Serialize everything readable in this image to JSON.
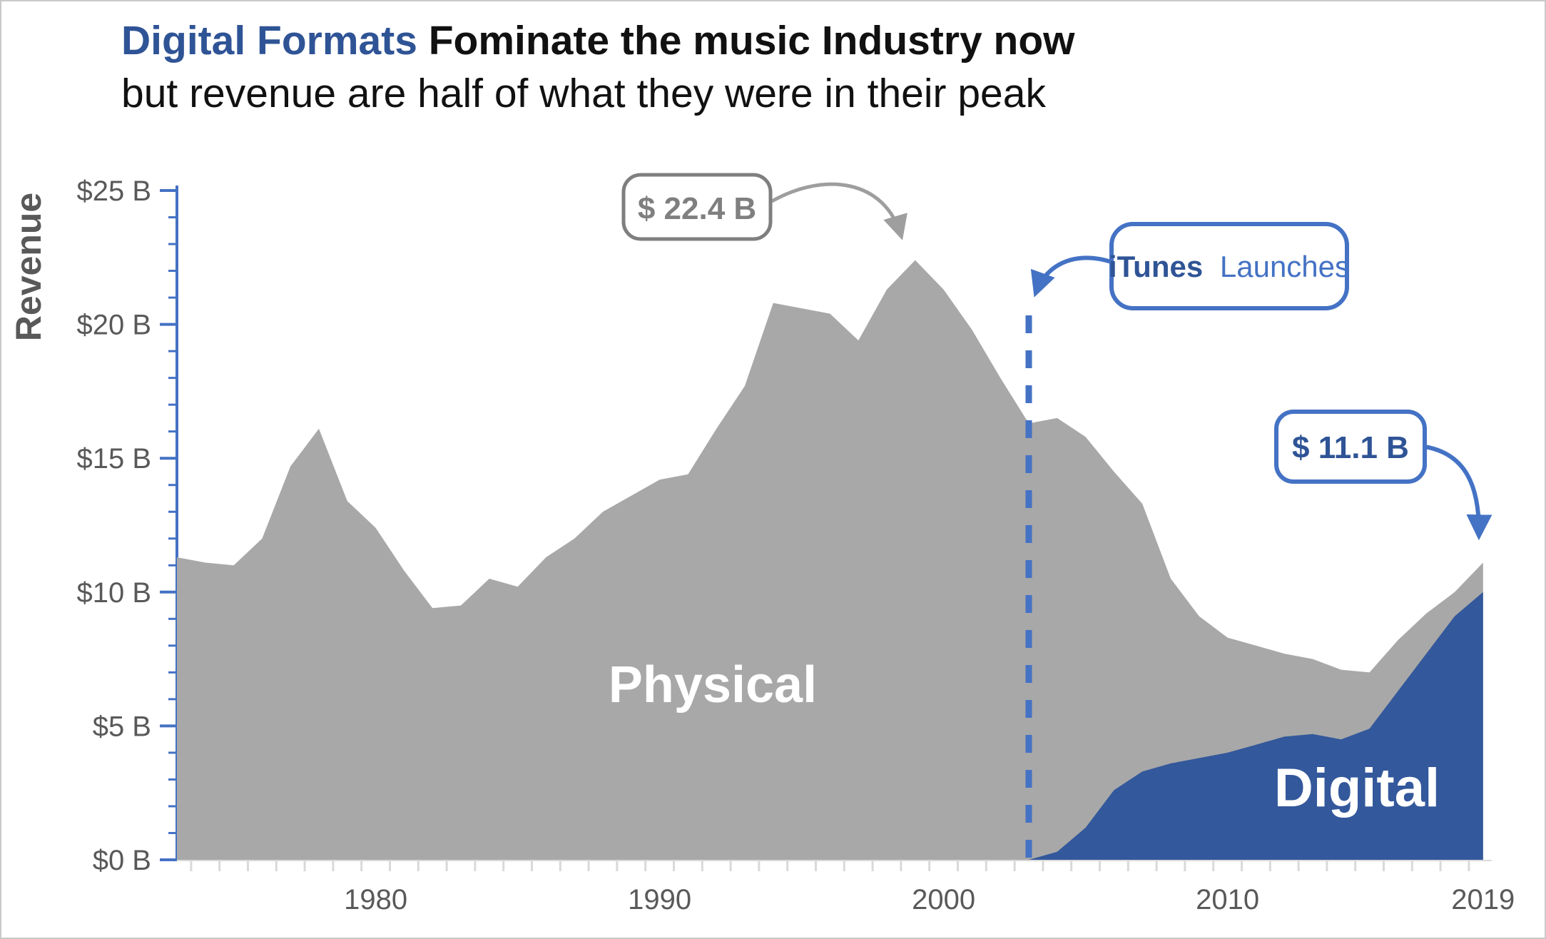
{
  "title": {
    "highlight": "Digital Formats",
    "rest": " Fominate the music Industry now",
    "subtitle": "but revenue are half of what they were in their peak"
  },
  "y_axis": {
    "title": "Revenue",
    "ticks": [
      {
        "label": "$25 B",
        "value": 25
      },
      {
        "label": "$20 B",
        "value": 20
      },
      {
        "label": "$15 B",
        "value": 15
      },
      {
        "label": "$10 B",
        "value": 10
      },
      {
        "label": "$5 B",
        "value": 5
      },
      {
        "label": "$0 B",
        "value": 0
      }
    ]
  },
  "x_axis": {
    "ticks": [
      {
        "label": "1980",
        "year": 1980
      },
      {
        "label": "1990",
        "year": 1990
      },
      {
        "label": "2000",
        "year": 2000
      },
      {
        "label": "2010",
        "year": 2010
      },
      {
        "label": "2019",
        "year": 2019
      }
    ]
  },
  "series_labels": {
    "physical": "Physical",
    "digital": "Digital"
  },
  "annotations": {
    "peak": {
      "label": "$ 22.4 B",
      "target_year": 1999,
      "target_value": 22.4
    },
    "itunes": {
      "bold": "iTunes",
      "rest": "Launches",
      "event_year": 2003
    },
    "latest": {
      "label": "$ 11.1 B",
      "target_year": 2019,
      "target_value": 11.1
    }
  },
  "colors": {
    "physical_area": "#A8A8A8",
    "digital_area": "#33589B",
    "axis_blue": "#4472C4",
    "dashed_line": "#4472C4",
    "gray_annotation": "#7F7F7F",
    "gray_arrow": "#9E9E9E",
    "blue_text_dark": "#2F5496",
    "axis_label_gray": "#595959",
    "x_tick_gray": "#D9D9D9",
    "title_blue": "#2F5496"
  },
  "chart_data": {
    "type": "area",
    "stacked": true,
    "title": "Digital Formats Fominate the music Industry now — but revenue are half of what they were in their peak",
    "xlabel": "",
    "ylabel": "Revenue",
    "ylim": [
      0,
      25
    ],
    "xlim": [
      1973,
      2019
    ],
    "grid": false,
    "legend_position": "in-plot labels",
    "x": [
      1973,
      1974,
      1975,
      1976,
      1977,
      1978,
      1979,
      1980,
      1981,
      1982,
      1983,
      1984,
      1985,
      1986,
      1987,
      1988,
      1989,
      1990,
      1991,
      1992,
      1993,
      1994,
      1995,
      1996,
      1997,
      1998,
      1999,
      2000,
      2001,
      2002,
      2003,
      2004,
      2005,
      2006,
      2007,
      2008,
      2009,
      2010,
      2011,
      2012,
      2013,
      2014,
      2015,
      2016,
      2017,
      2018,
      2019
    ],
    "series": [
      {
        "name": "Digital",
        "color": "#33589B",
        "values": [
          0,
          0,
          0,
          0,
          0,
          0,
          0,
          0,
          0,
          0,
          0,
          0,
          0,
          0,
          0,
          0,
          0,
          0,
          0,
          0,
          0,
          0,
          0,
          0,
          0,
          0,
          0,
          0,
          0,
          0,
          0,
          0.3,
          1.2,
          2.6,
          3.3,
          3.6,
          3.8,
          4.0,
          4.3,
          4.6,
          4.7,
          4.5,
          4.9,
          6.3,
          7.7,
          9.1,
          10.0
        ]
      },
      {
        "name": "Physical",
        "color": "#A8A8A8",
        "values": [
          11.3,
          11.1,
          11.0,
          12.0,
          14.7,
          16.1,
          13.4,
          12.4,
          10.8,
          9.4,
          9.5,
          10.5,
          10.2,
          11.3,
          12.0,
          13.0,
          13.6,
          14.2,
          14.4,
          16.1,
          17.7,
          20.8,
          20.6,
          20.4,
          19.4,
          21.3,
          22.4,
          21.3,
          19.8,
          18.0,
          16.3,
          16.2,
          14.6,
          11.9,
          10.0,
          6.9,
          5.3,
          4.3,
          3.7,
          3.1,
          2.8,
          2.6,
          2.1,
          1.9,
          1.5,
          0.9,
          1.1
        ]
      }
    ],
    "annotated_points": [
      {
        "year": 1999,
        "total": 22.4,
        "label": "$ 22.4 B"
      },
      {
        "year": 2019,
        "total": 11.1,
        "label": "$ 11.1 B"
      }
    ],
    "event_marker": {
      "year": 2003,
      "label": "iTunes Launches",
      "style": "vertical dashed line"
    }
  }
}
